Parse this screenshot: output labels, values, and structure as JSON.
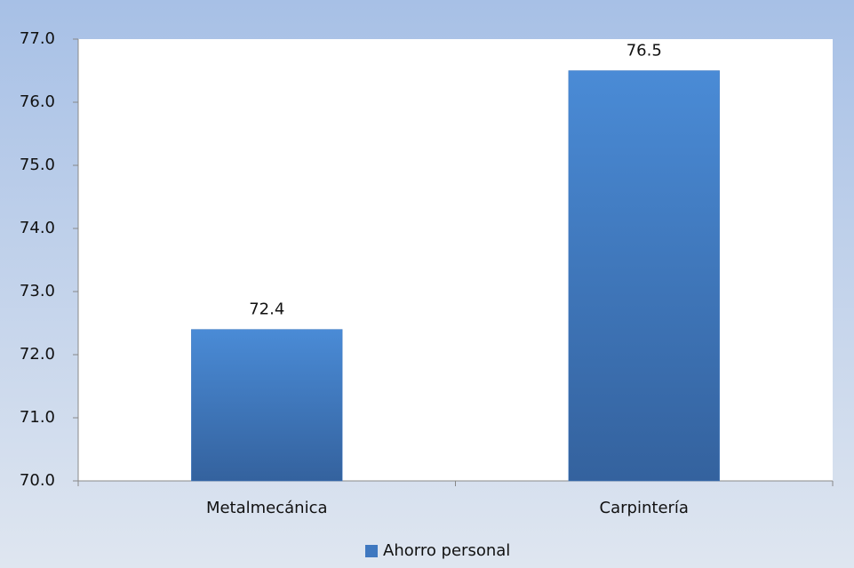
{
  "chart_data": {
    "type": "bar",
    "categories": [
      "Metalmecánica",
      "Carpintería"
    ],
    "series": [
      {
        "name": "Ahorro personal",
        "color": "#3f78c0",
        "values": [
          72.4,
          76.5
        ]
      }
    ],
    "ylim": [
      70,
      77
    ],
    "yticks": [
      {
        "value": 70,
        "label": "70.0"
      },
      {
        "value": 71,
        "label": "71.0"
      },
      {
        "value": 72,
        "label": "72.0"
      },
      {
        "value": 73,
        "label": "73.0"
      },
      {
        "value": 74,
        "label": "74.0"
      },
      {
        "value": 75,
        "label": "75.0"
      },
      {
        "value": 76,
        "label": "76.0"
      },
      {
        "value": 77,
        "label": "77.0"
      }
    ],
    "grid": false,
    "legend": "bottom"
  }
}
